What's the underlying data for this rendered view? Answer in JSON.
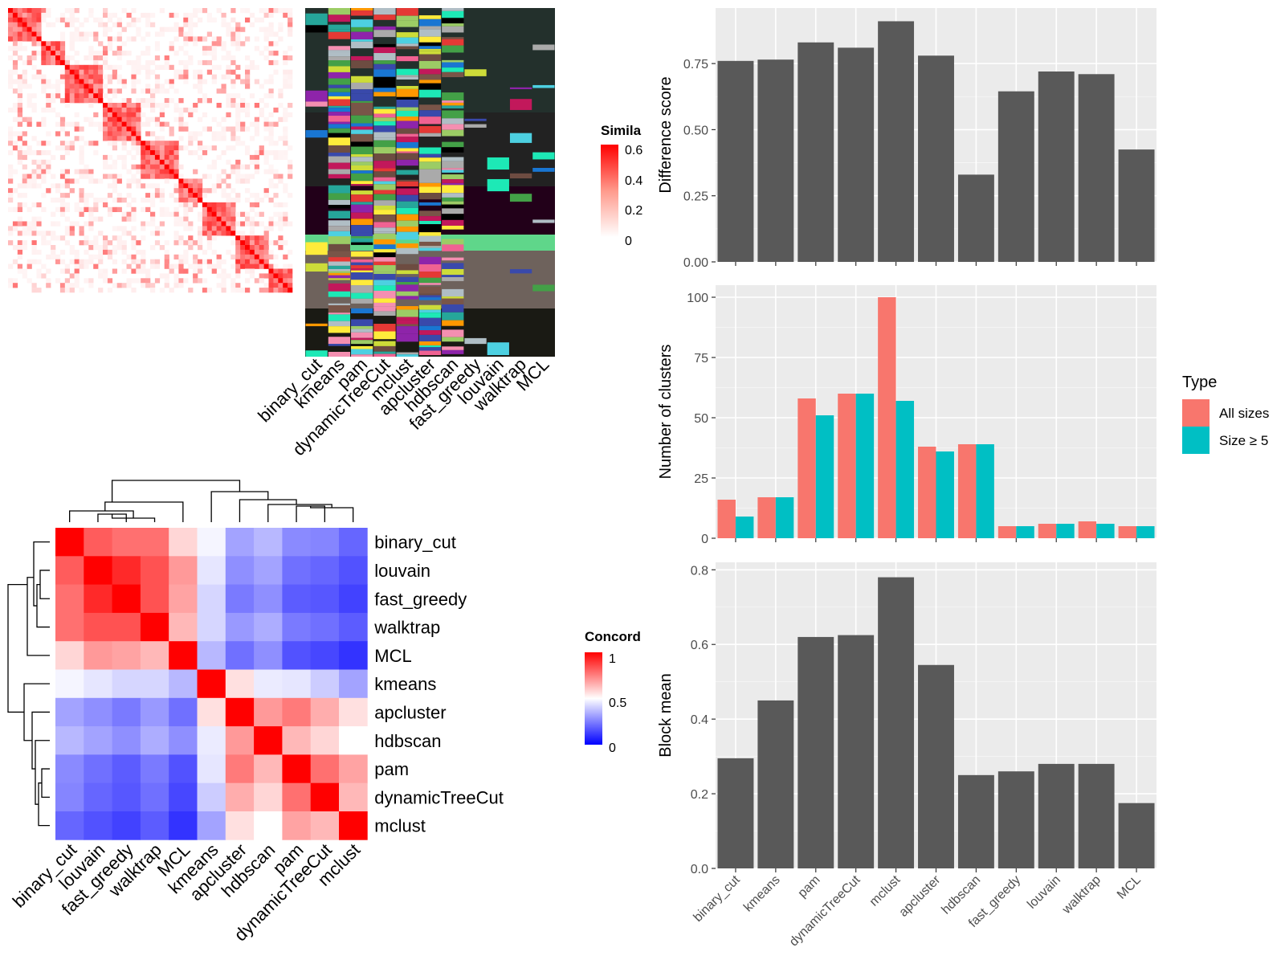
{
  "methods_top": [
    "binary_cut",
    "kmeans",
    "pam",
    "dynamicTreeCut",
    "mclust",
    "apcluster",
    "hdbscan",
    "fast_greedy",
    "louvain",
    "walktrap",
    "MCL"
  ],
  "similarity_legend": {
    "title": "Simila",
    "ticks": [
      "0.6",
      "0.4",
      "0.2",
      "0"
    ],
    "colors": [
      "#ffffff",
      "#ff0000"
    ]
  },
  "concordance": {
    "order": [
      "binary_cut",
      "louvain",
      "fast_greedy",
      "walktrap",
      "MCL",
      "kmeans",
      "apcluster",
      "hdbscan",
      "pam",
      "dynamicTreeCut",
      "mclust"
    ],
    "matrix": [
      [
        1.0,
        0.82,
        0.78,
        0.78,
        0.58,
        0.48,
        0.32,
        0.36,
        0.27,
        0.26,
        0.2
      ],
      [
        0.82,
        1.0,
        0.92,
        0.84,
        0.7,
        0.45,
        0.28,
        0.32,
        0.22,
        0.2,
        0.16
      ],
      [
        0.78,
        0.92,
        1.0,
        0.84,
        0.68,
        0.42,
        0.24,
        0.28,
        0.18,
        0.17,
        0.13
      ],
      [
        0.78,
        0.84,
        0.84,
        1.0,
        0.64,
        0.42,
        0.3,
        0.34,
        0.24,
        0.22,
        0.18
      ],
      [
        0.58,
        0.7,
        0.68,
        0.64,
        1.0,
        0.36,
        0.22,
        0.28,
        0.16,
        0.14,
        0.1
      ],
      [
        0.48,
        0.45,
        0.42,
        0.42,
        0.36,
        1.0,
        0.56,
        0.46,
        0.45,
        0.4,
        0.32
      ],
      [
        0.32,
        0.28,
        0.24,
        0.3,
        0.22,
        0.56,
        1.0,
        0.7,
        0.76,
        0.66,
        0.56
      ],
      [
        0.36,
        0.32,
        0.28,
        0.34,
        0.28,
        0.46,
        0.7,
        1.0,
        0.64,
        0.58,
        0.5
      ],
      [
        0.27,
        0.22,
        0.18,
        0.24,
        0.16,
        0.45,
        0.76,
        0.64,
        1.0,
        0.78,
        0.68
      ],
      [
        0.26,
        0.2,
        0.17,
        0.22,
        0.14,
        0.4,
        0.66,
        0.58,
        0.78,
        1.0,
        0.64
      ],
      [
        0.2,
        0.16,
        0.13,
        0.18,
        0.1,
        0.32,
        0.56,
        0.5,
        0.68,
        0.64,
        1.0
      ]
    ],
    "legend": {
      "title": "Concord",
      "ticks": [
        "1",
        "0.5",
        "0"
      ]
    },
    "colors": {
      "low": "#0000ff",
      "mid": "#ffffff",
      "high": "#ff0000"
    }
  },
  "chart_data": [
    {
      "type": "bar",
      "categories": [
        "binary_cut",
        "kmeans",
        "pam",
        "dynamicTreeCut",
        "mclust",
        "apcluster",
        "hdbscan",
        "fast_greedy",
        "louvain",
        "walktrap",
        "MCL"
      ],
      "values": [
        0.76,
        0.765,
        0.83,
        0.81,
        0.91,
        0.78,
        0.33,
        0.645,
        0.72,
        0.71,
        0.425
      ],
      "ylabel": "Difference score",
      "ylim": [
        0,
        0.96
      ],
      "yticks": [
        "0.00",
        "0.25",
        "0.50",
        "0.75"
      ],
      "bar_color": "#595959"
    },
    {
      "type": "bar",
      "categories": [
        "binary_cut",
        "kmeans",
        "pam",
        "dynamicTreeCut",
        "mclust",
        "apcluster",
        "hdbscan",
        "fast_greedy",
        "louvain",
        "walktrap",
        "MCL"
      ],
      "series": [
        {
          "name": "All sizes",
          "values": [
            16,
            17,
            58,
            60,
            100,
            38,
            39,
            5,
            6,
            7,
            5
          ],
          "color": "#f8766d"
        },
        {
          "name": "Size ≥ 5",
          "values": [
            9,
            17,
            51,
            60,
            57,
            36,
            39,
            5,
            6,
            6,
            5
          ],
          "color": "#00bfc4"
        }
      ],
      "ylabel": "Number of clusters",
      "ylim": [
        0,
        105
      ],
      "yticks": [
        "0",
        "25",
        "50",
        "75",
        "100"
      ],
      "legend_title": "Type"
    },
    {
      "type": "bar",
      "categories": [
        "binary_cut",
        "kmeans",
        "pam",
        "dynamicTreeCut",
        "mclust",
        "apcluster",
        "hdbscan",
        "fast_greedy",
        "louvain",
        "walktrap",
        "MCL"
      ],
      "values": [
        0.295,
        0.45,
        0.62,
        0.625,
        0.78,
        0.545,
        0.25,
        0.26,
        0.28,
        0.28,
        0.175
      ],
      "ylabel": "Block mean",
      "ylim": [
        0,
        0.82
      ],
      "yticks": [
        "0.0",
        "0.2",
        "0.4",
        "0.6",
        "0.8"
      ],
      "bar_color": "#595959"
    }
  ]
}
